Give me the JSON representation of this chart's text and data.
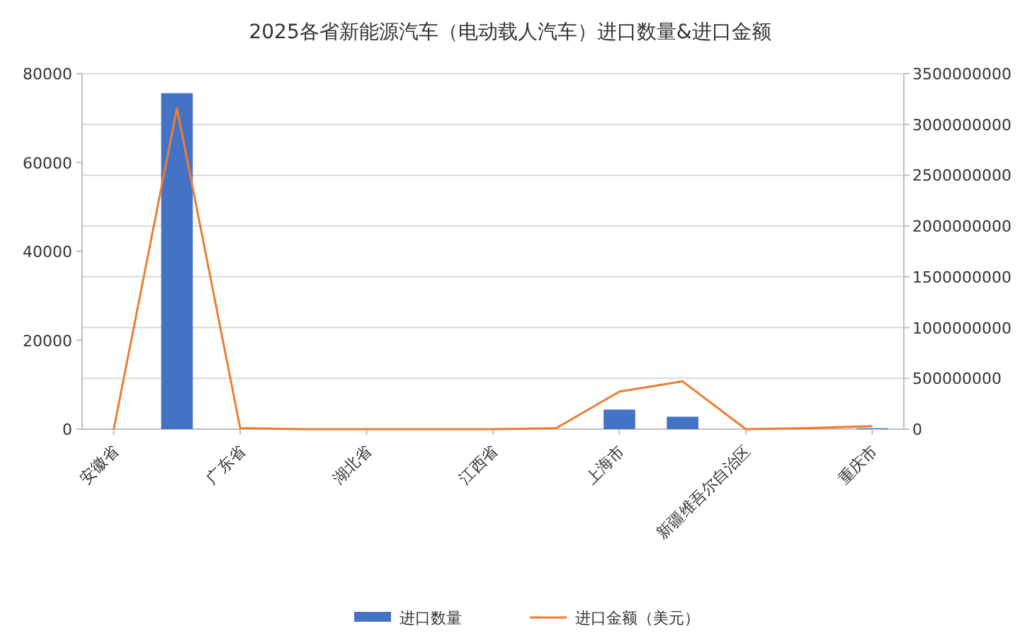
{
  "chart_data": {
    "type": "bar",
    "title": "2025各省新能源汽车（电动载人汽车）进口数量&进口金额",
    "categories": [
      "安徽省",
      null,
      "广东省",
      null,
      "湖北省",
      null,
      "江西省",
      null,
      "上海市",
      null,
      "新疆维吾尔自治区",
      null,
      "重庆市"
    ],
    "series": [
      {
        "name": "进口数量",
        "color": "#4472c4",
        "values": [
          0,
          75600,
          0,
          0,
          0,
          0,
          0,
          0,
          4400,
          2800,
          0,
          0,
          200
        ]
      },
      {
        "name": "进口金额（美元）",
        "type": "line",
        "axis": "y2",
        "color": "#ed7d31",
        "values": [
          0,
          3160000000,
          10000000,
          0,
          0,
          0,
          0,
          10000000,
          370000000,
          470000000,
          0,
          10000000,
          30000000
        ]
      }
    ],
    "ylim": [
      0,
      80000
    ],
    "yticks": [
      0,
      20000,
      40000,
      60000,
      80000
    ],
    "y2lim": [
      0,
      3500000000
    ],
    "y2ticks": [
      0,
      500000000,
      1000000000,
      1500000000,
      2000000000,
      2500000000,
      3000000000,
      3500000000
    ],
    "grid": true,
    "legend": "bottom"
  }
}
